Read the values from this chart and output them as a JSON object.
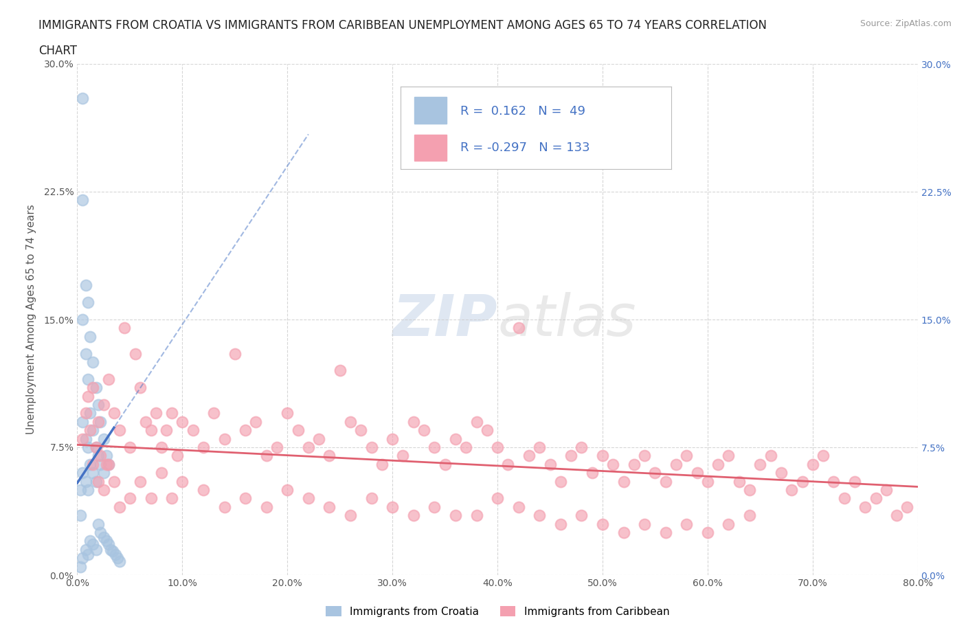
{
  "title_line1": "IMMIGRANTS FROM CROATIA VS IMMIGRANTS FROM CARIBBEAN UNEMPLOYMENT AMONG AGES 65 TO 74 YEARS CORRELATION",
  "title_line2": "CHART",
  "source": "Source: ZipAtlas.com",
  "ylabel": "Unemployment Among Ages 65 to 74 years",
  "xlim": [
    0.0,
    0.8
  ],
  "ylim": [
    0.0,
    0.3
  ],
  "xticks": [
    0.0,
    0.1,
    0.2,
    0.3,
    0.4,
    0.5,
    0.6,
    0.7,
    0.8
  ],
  "yticks": [
    0.0,
    0.075,
    0.15,
    0.225,
    0.3
  ],
  "ytick_labels": [
    "0.0%",
    "7.5%",
    "15.0%",
    "22.5%",
    "30.0%"
  ],
  "xtick_labels": [
    "0.0%",
    "10.0%",
    "20.0%",
    "30.0%",
    "40.0%",
    "50.0%",
    "60.0%",
    "70.0%",
    "80.0%"
  ],
  "croatia_color": "#a8c4e0",
  "caribbean_color": "#f4a0b0",
  "croatia_line_color": "#4472c4",
  "caribbean_line_color": "#e06070",
  "croatia_R": 0.162,
  "croatia_N": 49,
  "caribbean_R": -0.297,
  "caribbean_N": 133,
  "watermark": "ZIPatlas",
  "legend_items": [
    "Immigrants from Croatia",
    "Immigrants from Caribbean"
  ],
  "background_color": "#ffffff",
  "grid_color": "#cccccc",
  "title_fontsize": 12,
  "axis_fontsize": 11,
  "croatia_scatter_x": [
    0.005,
    0.005,
    0.005,
    0.005,
    0.005,
    0.005,
    0.008,
    0.008,
    0.008,
    0.008,
    0.008,
    0.01,
    0.01,
    0.01,
    0.01,
    0.01,
    0.012,
    0.012,
    0.012,
    0.012,
    0.015,
    0.015,
    0.015,
    0.015,
    0.018,
    0.018,
    0.018,
    0.018,
    0.02,
    0.02,
    0.02,
    0.022,
    0.022,
    0.022,
    0.025,
    0.025,
    0.025,
    0.028,
    0.028,
    0.03,
    0.03,
    0.032,
    0.034,
    0.036,
    0.038,
    0.04,
    0.003,
    0.003,
    0.003
  ],
  "croatia_scatter_y": [
    0.28,
    0.22,
    0.15,
    0.09,
    0.06,
    0.01,
    0.17,
    0.13,
    0.08,
    0.055,
    0.015,
    0.16,
    0.115,
    0.075,
    0.05,
    0.012,
    0.14,
    0.095,
    0.065,
    0.02,
    0.125,
    0.085,
    0.06,
    0.018,
    0.11,
    0.075,
    0.055,
    0.015,
    0.1,
    0.07,
    0.03,
    0.09,
    0.065,
    0.025,
    0.08,
    0.06,
    0.022,
    0.07,
    0.02,
    0.065,
    0.018,
    0.015,
    0.014,
    0.012,
    0.01,
    0.008,
    0.05,
    0.035,
    0.005
  ],
  "caribbean_scatter_x": [
    0.005,
    0.008,
    0.01,
    0.012,
    0.015,
    0.018,
    0.02,
    0.022,
    0.025,
    0.028,
    0.03,
    0.035,
    0.04,
    0.045,
    0.05,
    0.055,
    0.06,
    0.065,
    0.07,
    0.075,
    0.08,
    0.085,
    0.09,
    0.095,
    0.1,
    0.11,
    0.12,
    0.13,
    0.14,
    0.15,
    0.16,
    0.17,
    0.18,
    0.19,
    0.2,
    0.21,
    0.22,
    0.23,
    0.24,
    0.25,
    0.26,
    0.27,
    0.28,
    0.29,
    0.3,
    0.31,
    0.32,
    0.33,
    0.34,
    0.35,
    0.36,
    0.37,
    0.38,
    0.39,
    0.4,
    0.41,
    0.42,
    0.43,
    0.44,
    0.45,
    0.46,
    0.47,
    0.48,
    0.49,
    0.5,
    0.51,
    0.52,
    0.53,
    0.54,
    0.55,
    0.56,
    0.57,
    0.58,
    0.59,
    0.6,
    0.61,
    0.62,
    0.63,
    0.64,
    0.65,
    0.66,
    0.67,
    0.68,
    0.69,
    0.7,
    0.71,
    0.72,
    0.73,
    0.74,
    0.75,
    0.76,
    0.77,
    0.78,
    0.79,
    0.015,
    0.02,
    0.025,
    0.03,
    0.035,
    0.04,
    0.05,
    0.06,
    0.07,
    0.08,
    0.09,
    0.1,
    0.12,
    0.14,
    0.16,
    0.18,
    0.2,
    0.22,
    0.24,
    0.26,
    0.28,
    0.3,
    0.32,
    0.34,
    0.36,
    0.38,
    0.4,
    0.42,
    0.44,
    0.46,
    0.48,
    0.5,
    0.52,
    0.54,
    0.56,
    0.58,
    0.6,
    0.62,
    0.64
  ],
  "caribbean_scatter_y": [
    0.08,
    0.095,
    0.105,
    0.085,
    0.11,
    0.075,
    0.09,
    0.07,
    0.1,
    0.065,
    0.115,
    0.095,
    0.085,
    0.145,
    0.075,
    0.13,
    0.11,
    0.09,
    0.085,
    0.095,
    0.075,
    0.085,
    0.095,
    0.07,
    0.09,
    0.085,
    0.075,
    0.095,
    0.08,
    0.13,
    0.085,
    0.09,
    0.07,
    0.075,
    0.095,
    0.085,
    0.075,
    0.08,
    0.07,
    0.12,
    0.09,
    0.085,
    0.075,
    0.065,
    0.08,
    0.07,
    0.09,
    0.085,
    0.075,
    0.065,
    0.08,
    0.075,
    0.09,
    0.085,
    0.075,
    0.065,
    0.145,
    0.07,
    0.075,
    0.065,
    0.055,
    0.07,
    0.075,
    0.06,
    0.07,
    0.065,
    0.055,
    0.065,
    0.07,
    0.06,
    0.055,
    0.065,
    0.07,
    0.06,
    0.055,
    0.065,
    0.07,
    0.055,
    0.05,
    0.065,
    0.07,
    0.06,
    0.05,
    0.055,
    0.065,
    0.07,
    0.055,
    0.045,
    0.055,
    0.04,
    0.045,
    0.05,
    0.035,
    0.04,
    0.065,
    0.055,
    0.05,
    0.065,
    0.055,
    0.04,
    0.045,
    0.055,
    0.045,
    0.06,
    0.045,
    0.055,
    0.05,
    0.04,
    0.045,
    0.04,
    0.05,
    0.045,
    0.04,
    0.035,
    0.045,
    0.04,
    0.035,
    0.04,
    0.035,
    0.035,
    0.045,
    0.04,
    0.035,
    0.03,
    0.035,
    0.03,
    0.025,
    0.03,
    0.025,
    0.03,
    0.025,
    0.03,
    0.035
  ]
}
